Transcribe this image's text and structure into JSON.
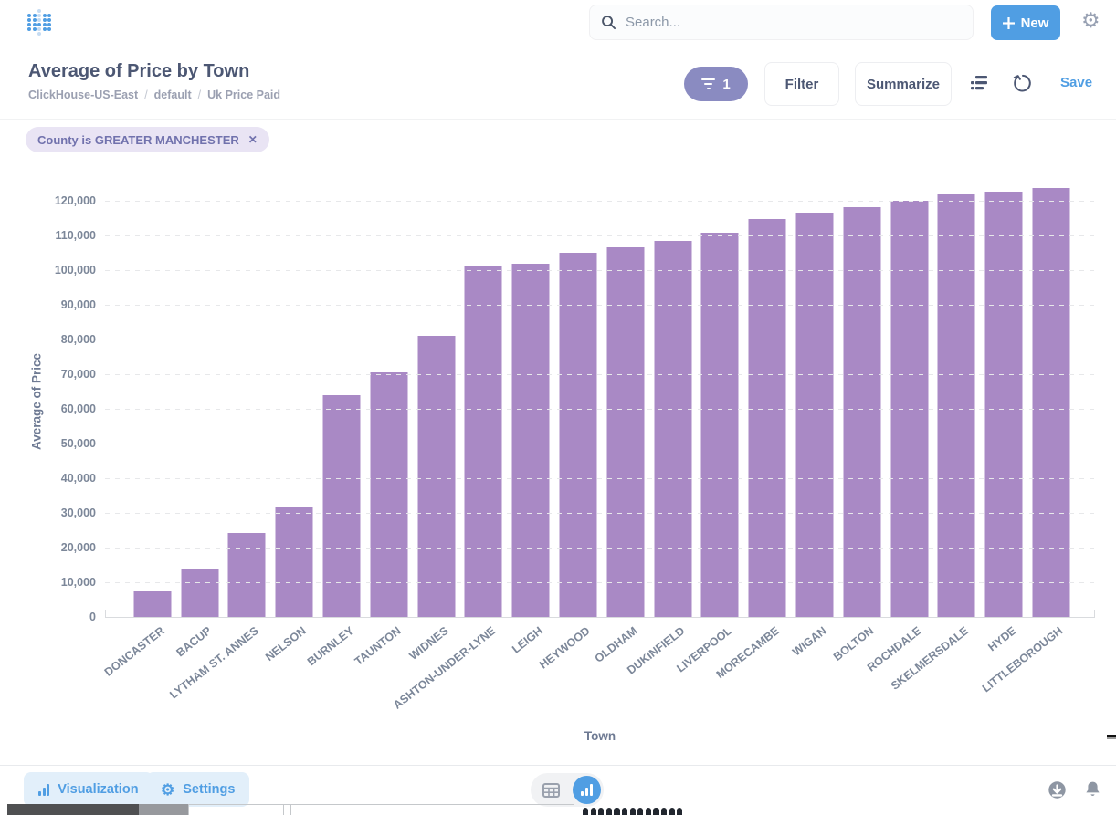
{
  "header": {
    "search_placeholder": "Search...",
    "new_label": "New",
    "plus_glyph": "+",
    "gear_glyph": "⚙"
  },
  "question": {
    "title": "Average of Price by Town",
    "breadcrumb": {
      "database": "ClickHouse-US-East",
      "schema": "default",
      "table": "Uk Price Paid",
      "separator": "/"
    },
    "filter_count": "1",
    "filter_label": "Filter",
    "summarize_label": "Summarize",
    "save_label": "Save"
  },
  "filters": {
    "chip_label": "County is GREATER MANCHESTER",
    "remove_glyph": "✕"
  },
  "chart_data": {
    "type": "bar",
    "title": "Average of Price by Town",
    "xlabel": "Town",
    "ylabel": "Average of Price",
    "ylim": [
      0,
      126000
    ],
    "ytick_max": 120000,
    "ytick_step": 10000,
    "grid": true,
    "legend": "none",
    "bar_color": "#A989C5",
    "categories": [
      "DONCASTER",
      "BACUP",
      "LYTHAM ST. ANNES",
      "NELSON",
      "BURNLEY",
      "TAUNTON",
      "WIDNES",
      "ASHTON-UNDER-LYNE",
      "LEIGH",
      "HEYWOOD",
      "OLDHAM",
      "DUKINFIELD",
      "LIVERPOOL",
      "MORECAMBE",
      "WIGAN",
      "BOLTON",
      "ROCHDALE",
      "SKELMERSDALE",
      "HYDE",
      "LITTLEBOROUGH"
    ],
    "values": [
      7400,
      13700,
      24200,
      31900,
      63900,
      70400,
      81000,
      101400,
      101900,
      104900,
      106600,
      108300,
      110800,
      114800,
      116700,
      118200,
      120000,
      121900,
      122700,
      123800
    ]
  },
  "footer": {
    "visualization_label": "Visualization",
    "settings_label": "Settings",
    "settings_gear_glyph": "⚙"
  },
  "icons": {
    "logo": "metabase-dot-grid-logo",
    "search": "magnifier",
    "new": "plus",
    "top_right": "gear",
    "filter_pill": "funnel",
    "toolbar": [
      "list",
      "refresh"
    ],
    "footer_left": [
      "bar-chart",
      "gear"
    ],
    "footer_center": [
      "table-grid",
      "bar-chart-active"
    ],
    "footer_right": [
      "download",
      "bell"
    ]
  },
  "colors": {
    "accent_blue": "#509EE3",
    "bar_purple": "#A989C5",
    "filter_pill_bg": "#8A8BC1",
    "chip_bg": "#E9E4F4",
    "chip_text": "#7172AD",
    "title_text": "#4C5773",
    "muted_text": "#9BA0B1",
    "tick_text": "#7C8799"
  }
}
